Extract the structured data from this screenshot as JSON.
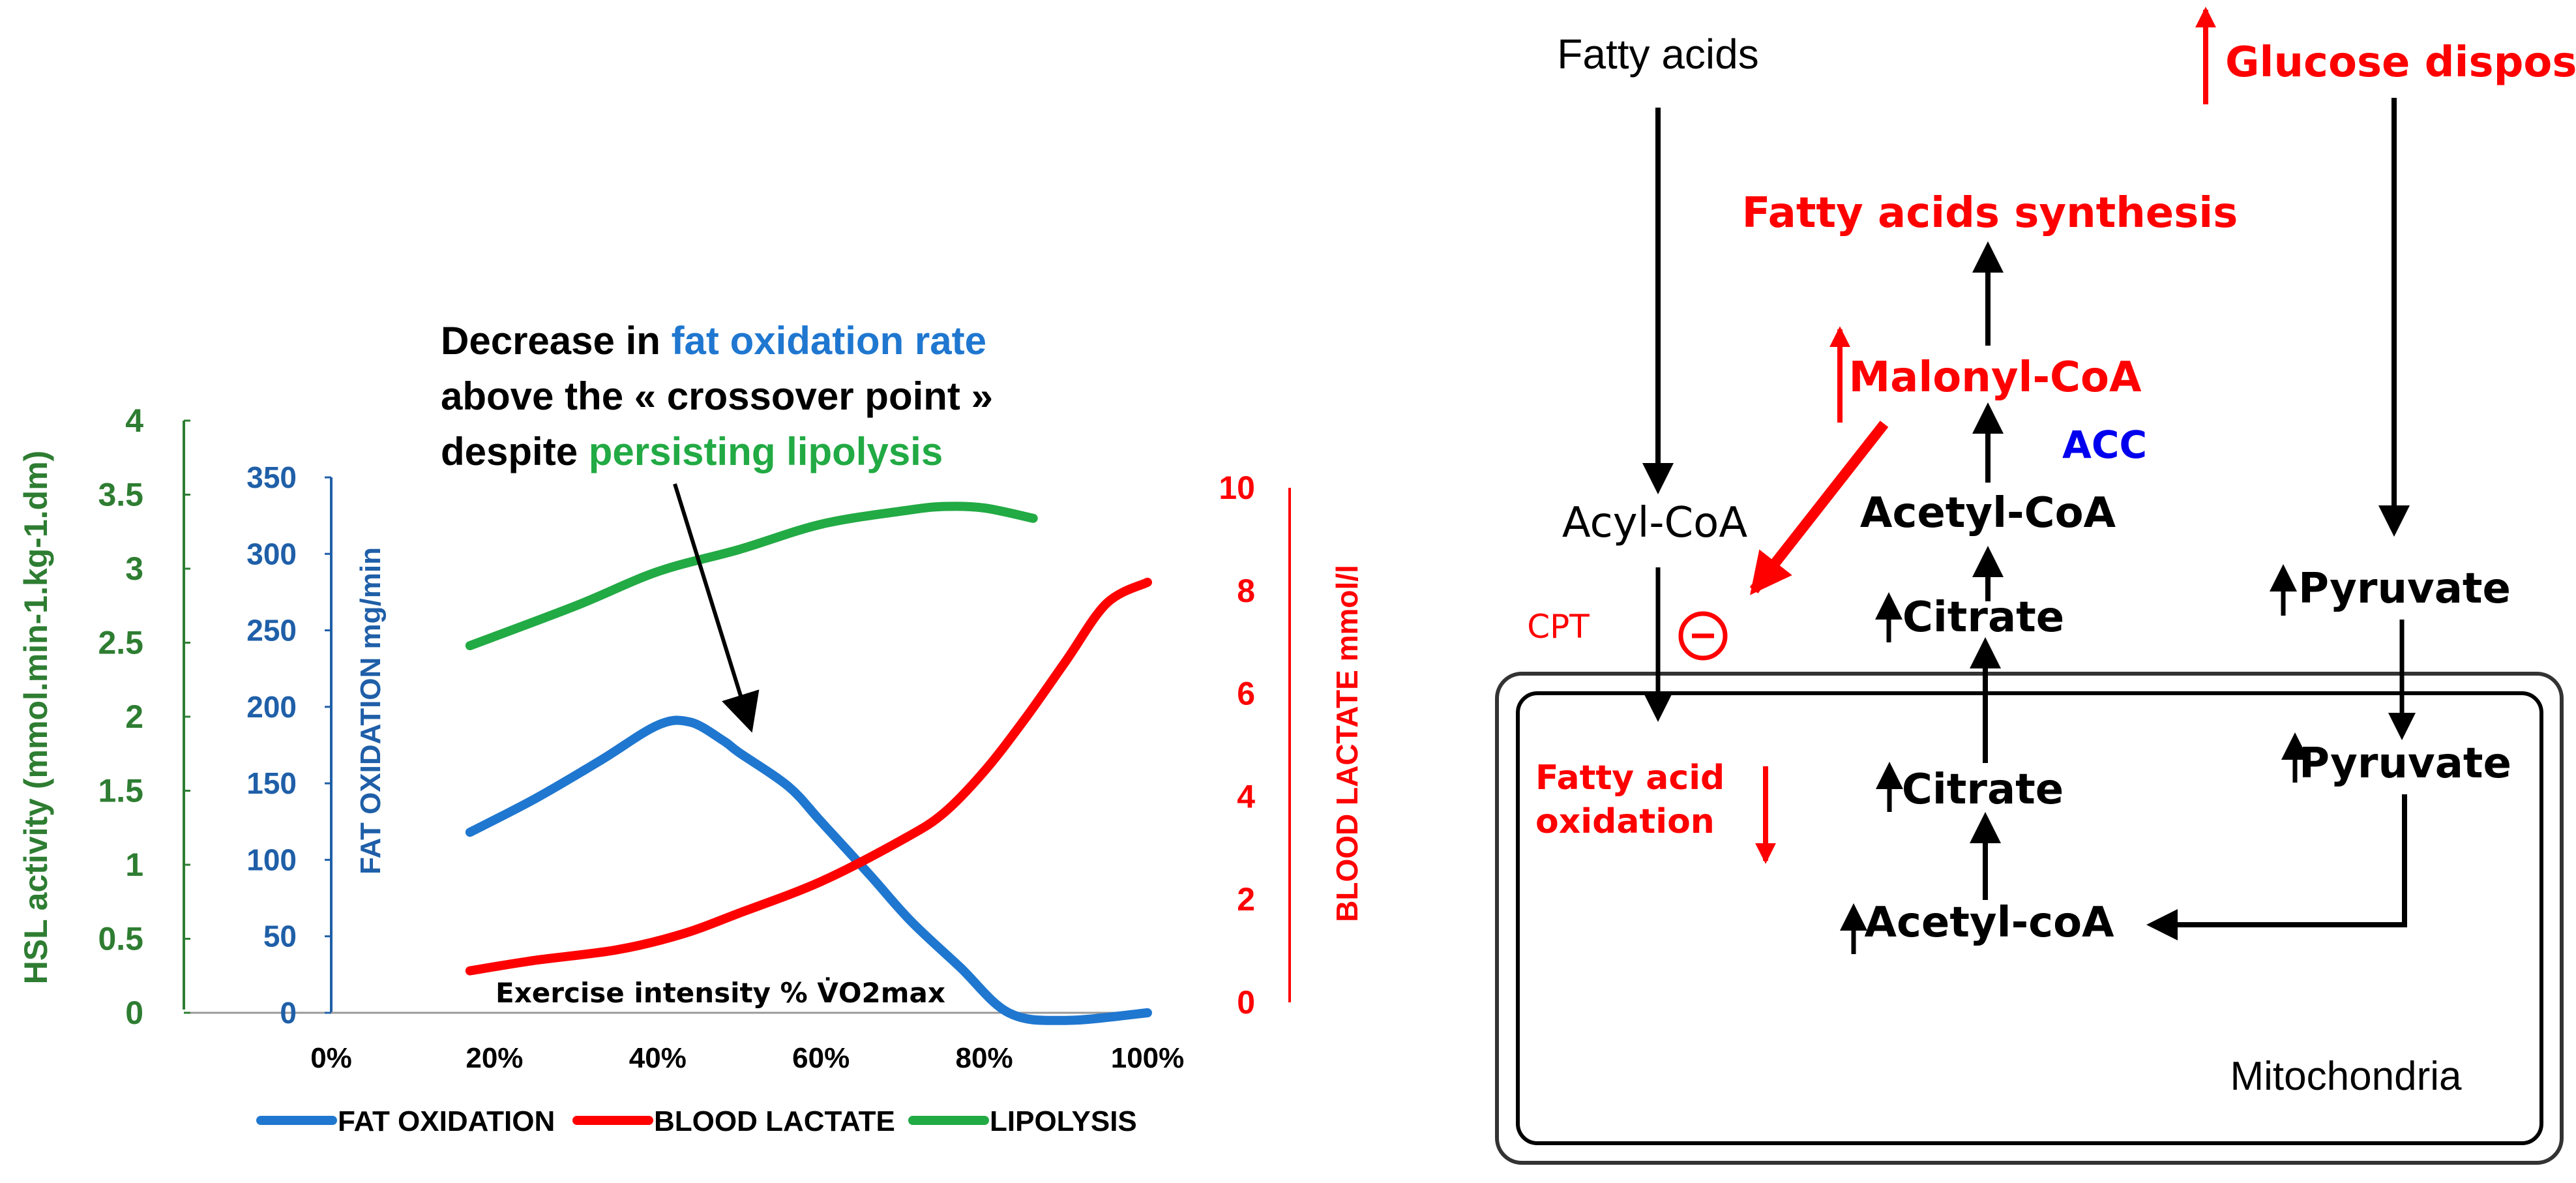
{
  "chart_data": {
    "type": "line",
    "x_axis": {
      "label": "Exercise intensity % V̇O2max",
      "ticks": [
        "0%",
        "20%",
        "40%",
        "60%",
        "80%",
        "100%"
      ],
      "range": [
        0,
        100
      ]
    },
    "axes": {
      "hsl": {
        "label": "HSL activity (mmol.min-1.kg-1.dm)",
        "ticks": [
          "0",
          "0.5",
          "1",
          "1.5",
          "2",
          "2.5",
          "3",
          "3.5",
          "4"
        ],
        "range": [
          0,
          4
        ],
        "color": "#2e7d32"
      },
      "fat": {
        "label": "FAT OXIDATION mg/min",
        "ticks": [
          "0",
          "50",
          "100",
          "150",
          "200",
          "250",
          "300",
          "350"
        ],
        "range": [
          0,
          350
        ],
        "color": "#1f5fa8"
      },
      "lactate": {
        "label": "BLOOD LACTATE mmol/l",
        "ticks": [
          "0",
          "2",
          "4",
          "6",
          "8",
          "10"
        ],
        "range": [
          0,
          10
        ],
        "color": "#ff0000"
      }
    },
    "series": [
      {
        "name": "FAT OXIDATION",
        "axis": "fat",
        "color": "#1f77d0",
        "points": [
          [
            17,
            118
          ],
          [
            25,
            140
          ],
          [
            33,
            165
          ],
          [
            40,
            188
          ],
          [
            44,
            190
          ],
          [
            48,
            178
          ],
          [
            50,
            170
          ],
          [
            56,
            148
          ],
          [
            60,
            125
          ],
          [
            66,
            90
          ],
          [
            71,
            60
          ],
          [
            77,
            30
          ],
          [
            83,
            0
          ],
          [
            90,
            -5
          ],
          [
            100,
            0
          ]
        ]
      },
      {
        "name": "BLOOD  LACTATE",
        "axis": "lactate",
        "color": "#ff0000",
        "points": [
          [
            17,
            0.8
          ],
          [
            25,
            1.0
          ],
          [
            35,
            1.2
          ],
          [
            43,
            1.5
          ],
          [
            50,
            1.9
          ],
          [
            60,
            2.5
          ],
          [
            70,
            3.3
          ],
          [
            75,
            3.8
          ],
          [
            80,
            4.6
          ],
          [
            85,
            5.6
          ],
          [
            90,
            6.7
          ],
          [
            95,
            7.8
          ],
          [
            100,
            8.2
          ]
        ]
      },
      {
        "name": "LIPOLYSIS",
        "axis": "hsl",
        "color": "#22aa44",
        "points": [
          [
            17,
            2.48
          ],
          [
            30,
            2.75
          ],
          [
            40,
            2.98
          ],
          [
            50,
            3.13
          ],
          [
            60,
            3.3
          ],
          [
            70,
            3.39
          ],
          [
            75,
            3.42
          ],
          [
            80,
            3.41
          ],
          [
            86,
            3.34
          ]
        ]
      }
    ],
    "annotation": {
      "line1_a": "Decrease in ",
      "line1_b": "fat oxidation rate",
      "line2": "above the « crossover point »",
      "line3_a": "despite ",
      "line3_b": "persisting lipolysis"
    },
    "legend_position": "bottom",
    "grid": false
  },
  "diagram": {
    "fatty_acids": "Fatty acids",
    "acyl_coa": "Acyl-CoA",
    "cpt": "CPT",
    "inhibit": "−",
    "fatty_acid_oxidation_1": "Fatty acid",
    "fatty_acid_oxidation_2": "oxidation",
    "glucose_disposal": "Glucose disposal",
    "fatty_acids_synthesis": "Fatty acids synthesis",
    "malonyl_coa": "Malonyl-CoA",
    "acc": "ACC",
    "acetyl_coa": "Acetyl-CoA",
    "citrate_cyto": "Citrate",
    "pyruvate_cyto": "Pyruvate",
    "pyruvate_mito": "Pyruvate",
    "citrate_mito": "Citrate",
    "acetyl_coa_mito": "Acetyl-coA",
    "mitochondria": "Mitochondria"
  }
}
